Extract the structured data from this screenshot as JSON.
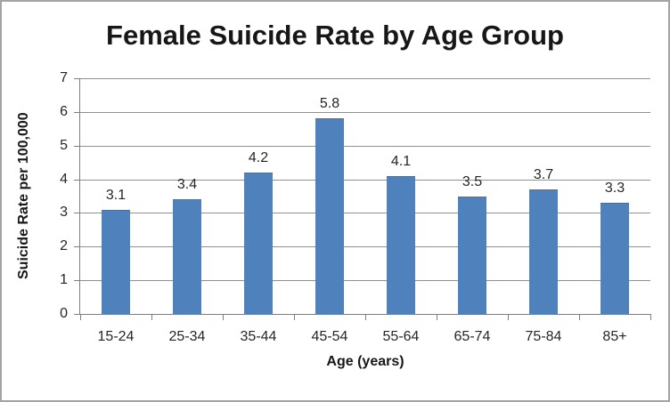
{
  "chart_data": {
    "type": "bar",
    "title": "Female Suicide Rate by Age Group",
    "categories": [
      "15-24",
      "25-34",
      "35-44",
      "45-54",
      "55-64",
      "65-74",
      "75-84",
      "85+"
    ],
    "values": [
      3.1,
      3.4,
      4.2,
      5.8,
      4.1,
      3.5,
      3.7,
      3.3
    ],
    "data_labels": [
      "3.1",
      "3.4",
      "4.2",
      "5.8",
      "4.1",
      "3.5",
      "3.7",
      "3.3"
    ],
    "xlabel": "Age (years)",
    "ylabel": "Suicide Rate per 100,000",
    "ylim": [
      0,
      7
    ],
    "yticks": [
      0,
      1,
      2,
      3,
      4,
      5,
      6,
      7
    ],
    "grid": true,
    "legend_position": "none",
    "bar_color": "#4f81bd",
    "gridline_color": "#909090",
    "axis_color": "#7f7f7f",
    "label_color": "#262626",
    "title_color": "#171717",
    "frame_color": "#a4a4a4"
  }
}
